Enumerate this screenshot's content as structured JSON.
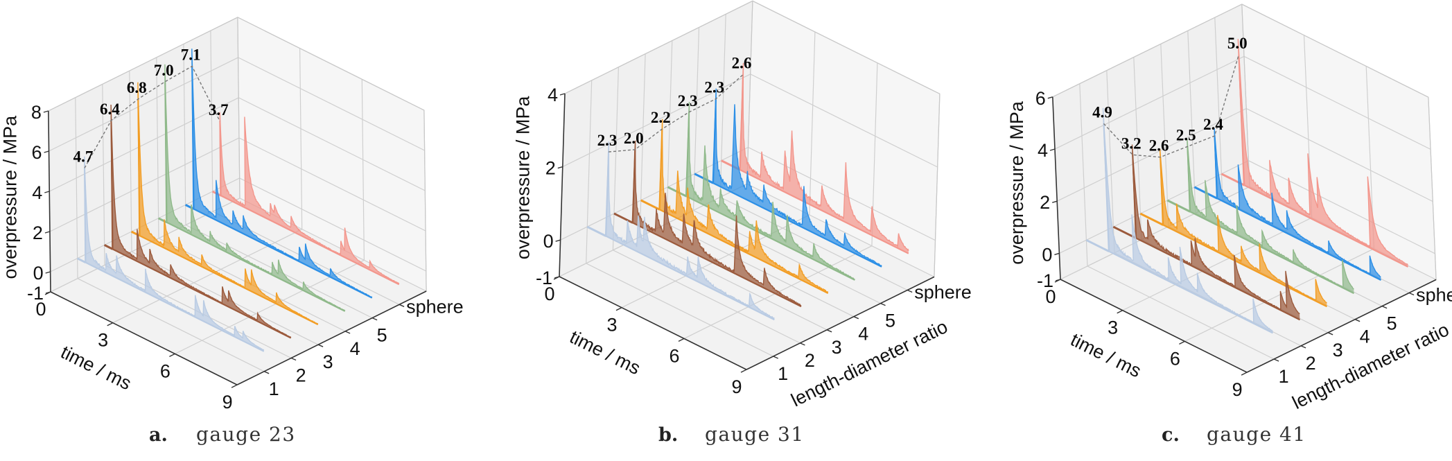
{
  "chart_data": [
    {
      "type": "area",
      "panel_letter": "a.",
      "title": "gauge 23",
      "xlabel": "time / ms",
      "ylabel": "length-diameter ratio",
      "ylabel_shown": false,
      "zlabel": "overpressure / MPa",
      "x_ticks": [
        "0",
        "3",
        "6",
        "9"
      ],
      "x_range": [
        0,
        9
      ],
      "y_ticks": [
        "1",
        "2",
        "3",
        "4",
        "5",
        "sphere"
      ],
      "z_ticks": [
        "-1",
        "0",
        "2",
        "4",
        "6",
        "8"
      ],
      "z_range": [
        -1,
        8
      ],
      "series": [
        {
          "name": "1",
          "color": "#b9cbe3",
          "peak": 4.7,
          "peak_label": "4.7",
          "arrival": 0.4,
          "reflections": [
            [
              1.4,
              0.7
            ],
            [
              1.9,
              0.8
            ],
            [
              3.3,
              0.9
            ],
            [
              5.7,
              0.9
            ],
            [
              6.1,
              0.7
            ],
            [
              7.6,
              0.4
            ],
            [
              8.0,
              0.3
            ]
          ]
        },
        {
          "name": "2",
          "color": "#9b5a3c",
          "peak": 6.4,
          "peak_label": "6.4",
          "arrival": 0.4,
          "reflections": [
            [
              1.6,
              1.3
            ],
            [
              2.2,
              0.6
            ],
            [
              3.2,
              0.5
            ],
            [
              5.7,
              0.7
            ],
            [
              6.0,
              0.5
            ],
            [
              7.4,
              0.3
            ]
          ]
        },
        {
          "name": "3",
          "color": "#f29d24",
          "peak": 6.8,
          "peak_label": "6.8",
          "arrival": 0.4,
          "reflections": [
            [
              1.6,
              1.1
            ],
            [
              2.3,
              0.6
            ],
            [
              3.4,
              0.4
            ],
            [
              5.5,
              0.8
            ],
            [
              5.8,
              0.7
            ],
            [
              7.0,
              0.4
            ]
          ]
        },
        {
          "name": "4",
          "color": "#8fb98a",
          "peak": 7.0,
          "peak_label": "7.0",
          "arrival": 0.4,
          "reflections": [
            [
              1.6,
              1.2
            ],
            [
              2.5,
              0.4
            ],
            [
              3.3,
              0.3
            ],
            [
              5.5,
              0.5
            ],
            [
              5.8,
              0.6
            ],
            [
              7.0,
              0.3
            ]
          ]
        },
        {
          "name": "5",
          "color": "#2c8fe6",
          "peak": 7.1,
          "peak_label": "7.1",
          "arrival": 0.4,
          "reflections": [
            [
              1.5,
              1.6
            ],
            [
              2.3,
              0.6
            ],
            [
              2.8,
              0.6
            ],
            [
              5.5,
              0.6
            ],
            [
              5.8,
              0.7
            ],
            [
              7.0,
              0.3
            ]
          ]
        },
        {
          "name": "sphere",
          "color": "#f3968c",
          "peak": 3.7,
          "peak_label": "3.7",
          "arrival": 0.4,
          "reflections": [
            [
              1.6,
              3.8
            ],
            [
              2.8,
              0.5
            ],
            [
              3.0,
              0.4
            ],
            [
              3.8,
              0.5
            ],
            [
              6.2,
              0.6
            ],
            [
              6.4,
              1.0
            ],
            [
              7.6,
              0.3
            ]
          ]
        }
      ]
    },
    {
      "type": "area",
      "panel_letter": "b.",
      "title": "gauge 31",
      "xlabel": "time / ms",
      "ylabel": "length-diameter ratio",
      "ylabel_shown": true,
      "zlabel": "overpressure / MPa",
      "x_ticks": [
        "0",
        "3",
        "6",
        "9"
      ],
      "x_range": [
        0,
        9
      ],
      "y_ticks": [
        "1",
        "2",
        "3",
        "4",
        "5",
        "sphere"
      ],
      "z_ticks": [
        "-1",
        "0",
        "2",
        "4"
      ],
      "z_range": [
        -1,
        4
      ],
      "series": [
        {
          "name": "1",
          "color": "#b9cbe3",
          "peak": 2.3,
          "peak_label": "2.3",
          "arrival": 0.9,
          "reflections": [
            [
              1.9,
              0.5
            ],
            [
              2.4,
              0.7
            ],
            [
              2.7,
              0.6
            ],
            [
              4.8,
              0.4
            ],
            [
              5.3,
              0.5
            ],
            [
              7.8,
              0.3
            ]
          ]
        },
        {
          "name": "2",
          "color": "#9b5a3c",
          "peak": 2.0,
          "peak_label": "2.0",
          "arrival": 0.9,
          "reflections": [
            [
              2.0,
              0.5
            ],
            [
              2.4,
              0.9
            ],
            [
              3.3,
              0.7
            ],
            [
              3.8,
              0.6
            ],
            [
              5.8,
              1.3
            ],
            [
              7.2,
              0.4
            ]
          ]
        },
        {
          "name": "3",
          "color": "#f29d24",
          "peak": 2.2,
          "peak_label": "2.2",
          "arrival": 0.9,
          "reflections": [
            [
              1.7,
              1.0
            ],
            [
              2.2,
              0.6
            ],
            [
              3.2,
              0.6
            ],
            [
              5.2,
              0.5
            ],
            [
              5.5,
              0.7
            ],
            [
              7.6,
              0.3
            ]
          ]
        },
        {
          "name": "4",
          "color": "#8fb98a",
          "peak": 2.3,
          "peak_label": "2.3",
          "arrival": 0.9,
          "reflections": [
            [
              1.7,
              1.3
            ],
            [
              2.5,
              0.4
            ],
            [
              3.3,
              0.4
            ],
            [
              5.0,
              0.8
            ],
            [
              5.7,
              0.6
            ],
            [
              7.0,
              0.3
            ]
          ]
        },
        {
          "name": "5",
          "color": "#2c8fe6",
          "peak": 2.3,
          "peak_label": "2.3",
          "arrival": 0.9,
          "reflections": [
            [
              1.8,
              2.0
            ],
            [
              2.5,
              0.4
            ],
            [
              3.3,
              0.4
            ],
            [
              5.2,
              0.9
            ],
            [
              6.3,
              0.4
            ],
            [
              7.2,
              0.3
            ]
          ]
        },
        {
          "name": "sphere",
          "color": "#f3968c",
          "peak": 2.6,
          "peak_label": "2.6",
          "arrival": 0.9,
          "reflections": [
            [
              1.9,
              0.6
            ],
            [
              3.0,
              0.9
            ],
            [
              3.3,
              1.2
            ],
            [
              4.8,
              0.5
            ],
            [
              5.9,
              1.3
            ],
            [
              7.2,
              0.6
            ],
            [
              8.5,
              0.3
            ]
          ]
        }
      ]
    },
    {
      "type": "area",
      "panel_letter": "c.",
      "title": "gauge 41",
      "xlabel": "time / ms",
      "ylabel": "length-diameter ratio",
      "ylabel_shown": true,
      "zlabel": "overpressure / MPa",
      "x_ticks": [
        "0",
        "3",
        "6",
        "9"
      ],
      "x_range": [
        0,
        9
      ],
      "y_ticks": [
        "1",
        "2",
        "3",
        "4",
        "5",
        "sphere"
      ],
      "z_ticks": [
        "-1",
        "0",
        "2",
        "4",
        "6"
      ],
      "z_range": [
        -1,
        6
      ],
      "series": [
        {
          "name": "1",
          "color": "#b9cbe3",
          "peak": 4.9,
          "peak_label": "4.9",
          "arrival": 1.1,
          "reflections": [
            [
              2.3,
              1.5
            ],
            [
              4.0,
              0.7
            ],
            [
              4.6,
              1.2
            ],
            [
              5.4,
              0.6
            ],
            [
              8.1,
              0.8
            ]
          ]
        },
        {
          "name": "2",
          "color": "#9b5a3c",
          "peak": 3.2,
          "peak_label": "3.2",
          "arrival": 1.1,
          "reflections": [
            [
              1.7,
              0.7
            ],
            [
              3.8,
              0.8
            ],
            [
              4.0,
              0.6
            ],
            [
              5.9,
              1.0
            ],
            [
              8.1,
              0.6
            ],
            [
              8.4,
              1.2
            ]
          ]
        },
        {
          "name": "3",
          "color": "#f29d24",
          "peak": 2.6,
          "peak_label": "2.6",
          "arrival": 1.1,
          "reflections": [
            [
              1.8,
              0.8
            ],
            [
              3.8,
              1.2
            ],
            [
              4.9,
              0.5
            ],
            [
              5.8,
              0.9
            ],
            [
              8.5,
              0.7
            ]
          ]
        },
        {
          "name": "4",
          "color": "#8fb98a",
          "peak": 2.5,
          "peak_label": "2.5",
          "arrival": 1.1,
          "reflections": [
            [
              1.9,
              1.2
            ],
            [
              3.4,
              0.9
            ],
            [
              4.6,
              0.5
            ],
            [
              6.1,
              0.4
            ],
            [
              8.5,
              0.9
            ]
          ]
        },
        {
          "name": "5",
          "color": "#2c8fe6",
          "peak": 2.4,
          "peak_label": "2.4",
          "arrival": 1.1,
          "reflections": [
            [
              2.2,
              1.4
            ],
            [
              3.8,
              1.0
            ],
            [
              4.5,
              0.6
            ],
            [
              6.5,
              0.4
            ],
            [
              8.5,
              0.6
            ]
          ]
        },
        {
          "name": "sphere",
          "color": "#f3968c",
          "peak": 5.0,
          "peak_label": "5.0",
          "arrival": 1.1,
          "reflections": [
            [
              2.4,
              1.2
            ],
            [
              3.3,
              0.9
            ],
            [
              4.3,
              2.0
            ],
            [
              4.7,
              1.0
            ],
            [
              7.2,
              2.3
            ]
          ]
        }
      ]
    }
  ]
}
